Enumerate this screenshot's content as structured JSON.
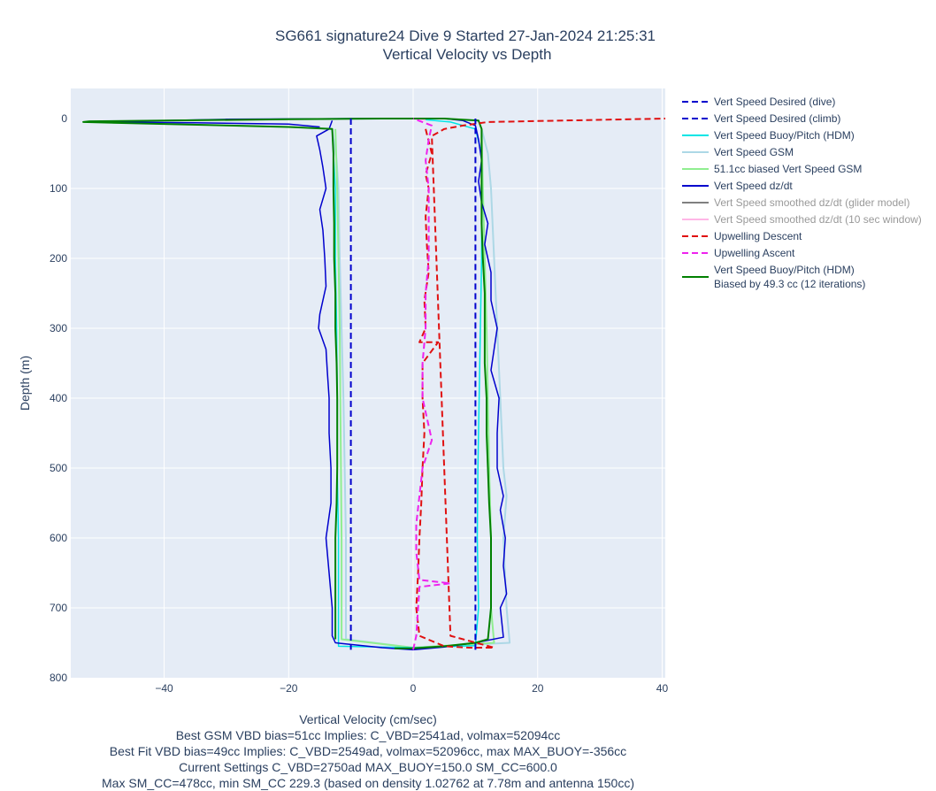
{
  "chart_data": {
    "type": "line",
    "title_line1": "SG661 signature24 Dive 9 Started 27-Jan-2024 21:25:31",
    "title_line2": "Vertical Velocity vs Depth",
    "xlabel": "Vertical Velocity (cm/sec)",
    "ylabel": "Depth (m)",
    "xlim": [
      -55,
      40.5
    ],
    "ylim": [
      800,
      -43
    ],
    "y_reversed": true,
    "x_ticks": [
      -40,
      -20,
      0,
      20,
      40
    ],
    "x_tick_labels": [
      "−40",
      "−20",
      "0",
      "20",
      "40"
    ],
    "y_ticks": [
      0,
      100,
      200,
      300,
      400,
      500,
      600,
      700,
      800
    ],
    "y_tick_labels": [
      "0",
      "100",
      "200",
      "300",
      "400",
      "500",
      "600",
      "700",
      "800"
    ],
    "grid": true,
    "plot_bgcolor": "#e5ecf6",
    "legend_position": "right",
    "captions": [
      "Best GSM VBD bias=51cc Implies: C_VBD=2541ad, volmax=52094cc",
      "Best Fit VBD bias=49cc Implies: C_VBD=2549ad, volmax=52096cc, max MAX_BUOY=-356cc",
      "Current Settings C_VBD=2750ad MAX_BUOY=150.0 SM_CC=600.0",
      "Max SM_CC=478cc, min SM_CC 229.3 (based on density 1.02762 at 7.78m and antenna 150cc)"
    ],
    "series": [
      {
        "name": "Vert Speed Desired (dive)",
        "color": "#0000cd",
        "dash": "dash",
        "width": 2,
        "dim": false,
        "points": [
          [
            -10,
            0
          ],
          [
            -10,
            760
          ]
        ]
      },
      {
        "name": "Vert Speed Desired (climb)",
        "color": "#0000cd",
        "dash": "dash",
        "width": 2,
        "dim": false,
        "points": [
          [
            10,
            760
          ],
          [
            10,
            0
          ]
        ]
      },
      {
        "name": "Vert Speed Buoy/Pitch (HDM)",
        "color": "#00e5e5",
        "dash": "solid",
        "width": 1.5,
        "dim": false,
        "points": [
          [
            -13,
            15
          ],
          [
            -12.8,
            50
          ],
          [
            -12.5,
            100
          ],
          [
            -12.5,
            200
          ],
          [
            -12.3,
            300
          ],
          [
            -12.2,
            400
          ],
          [
            -12.2,
            500
          ],
          [
            -12,
            600
          ],
          [
            -12,
            700
          ],
          [
            -12,
            745
          ],
          [
            -12,
            755
          ],
          [
            0,
            757
          ],
          [
            10,
            754
          ],
          [
            10.5,
            700
          ],
          [
            10.3,
            600
          ],
          [
            10.4,
            500
          ],
          [
            10.6,
            400
          ],
          [
            10.8,
            300
          ],
          [
            11,
            200
          ],
          [
            11,
            100
          ],
          [
            11,
            50
          ],
          [
            10,
            15
          ],
          [
            6,
            5
          ],
          [
            0,
            0
          ]
        ]
      },
      {
        "name": "Vert Speed GSM",
        "color": "#add8e6",
        "dash": "solid",
        "width": 2,
        "dim": false,
        "points": [
          [
            -13,
            15
          ],
          [
            -12.3,
            60
          ],
          [
            -12,
            100
          ],
          [
            -11.8,
            200
          ],
          [
            -11.5,
            300
          ],
          [
            -11.2,
            400
          ],
          [
            -11,
            500
          ],
          [
            -10.8,
            600
          ],
          [
            -10.8,
            700
          ],
          [
            -10.8,
            745
          ],
          [
            0,
            757
          ],
          [
            15.5,
            750
          ],
          [
            15,
            700
          ],
          [
            14.5,
            600
          ],
          [
            15,
            540
          ],
          [
            14.5,
            500
          ],
          [
            14,
            400
          ],
          [
            13.5,
            300
          ],
          [
            13,
            200
          ],
          [
            12.5,
            100
          ],
          [
            12,
            50
          ],
          [
            11,
            15
          ]
        ]
      },
      {
        "name": "51.1cc biased Vert Speed GSM",
        "color": "#90ee90",
        "dash": "solid",
        "width": 2,
        "dim": false,
        "points": [
          [
            -12.5,
            15
          ],
          [
            -12.2,
            100
          ],
          [
            -12,
            200
          ],
          [
            -11.8,
            300
          ],
          [
            -11.7,
            400
          ],
          [
            -11.6,
            500
          ],
          [
            -11.5,
            600
          ],
          [
            -11.5,
            700
          ],
          [
            -11.5,
            745
          ],
          [
            0,
            757
          ],
          [
            13,
            750
          ],
          [
            12.5,
            700
          ],
          [
            12.5,
            600
          ],
          [
            12.2,
            500
          ],
          [
            12,
            400
          ],
          [
            11.8,
            300
          ],
          [
            11.5,
            200
          ],
          [
            11.2,
            100
          ],
          [
            11,
            15
          ]
        ]
      },
      {
        "name": "Vert Speed dz/dt",
        "color": "#0000cd",
        "dash": "solid",
        "width": 1.5,
        "dim": false,
        "points": [
          [
            -13,
            3
          ],
          [
            -13.5,
            15
          ],
          [
            -15.5,
            25
          ],
          [
            -15,
            45
          ],
          [
            -14.5,
            70
          ],
          [
            -14,
            100
          ],
          [
            -15,
            130
          ],
          [
            -14.5,
            160
          ],
          [
            -14.2,
            200
          ],
          [
            -14,
            240
          ],
          [
            -15,
            280
          ],
          [
            -15.2,
            300
          ],
          [
            -14,
            330
          ],
          [
            -13.8,
            360
          ],
          [
            -13.5,
            400
          ],
          [
            -13.5,
            450
          ],
          [
            -13.2,
            500
          ],
          [
            -13.2,
            550
          ],
          [
            -14,
            600
          ],
          [
            -13.5,
            650
          ],
          [
            -13,
            700
          ],
          [
            -13,
            740
          ],
          [
            -12.5,
            750
          ],
          [
            -5,
            757
          ],
          [
            0,
            760
          ],
          [
            5,
            756
          ],
          [
            10,
            750
          ],
          [
            14.5,
            742
          ],
          [
            14,
            700
          ],
          [
            15,
            680
          ],
          [
            14.5,
            640
          ],
          [
            14.8,
            600
          ],
          [
            14,
            560
          ],
          [
            14.5,
            540
          ],
          [
            13.5,
            500
          ],
          [
            13.5,
            450
          ],
          [
            13.8,
            400
          ],
          [
            12.5,
            360
          ],
          [
            13,
            330
          ],
          [
            13.5,
            300
          ],
          [
            12.5,
            260
          ],
          [
            12.5,
            220
          ],
          [
            11.5,
            180
          ],
          [
            12,
            150
          ],
          [
            11,
            120
          ],
          [
            10.5,
            90
          ],
          [
            11,
            60
          ],
          [
            10.5,
            30
          ],
          [
            10,
            10
          ],
          [
            8,
            3
          ],
          [
            5,
            0
          ],
          [
            0,
            0
          ],
          [
            -10,
            0
          ],
          [
            -30,
            1
          ],
          [
            -40,
            3
          ],
          [
            -48,
            4
          ],
          [
            -50,
            5
          ],
          [
            -35,
            6
          ],
          [
            -20,
            8
          ],
          [
            -15,
            12
          ]
        ]
      },
      {
        "name": "Vert Speed smoothed dz/dt (glider model)",
        "color": "#808080",
        "dash": "solid",
        "width": 2,
        "dim": true,
        "points": []
      },
      {
        "name": "Vert Speed smoothed dz/dt (10 sec window)",
        "color": "#ffb6e6",
        "dash": "solid",
        "width": 2,
        "dim": true,
        "points": [
          [
            0,
            0
          ],
          [
            2,
            2
          ]
        ]
      },
      {
        "name": "Upwelling Descent",
        "color": "#e01010",
        "dash": "dash",
        "width": 2,
        "dim": false,
        "points": [
          [
            2,
            15
          ],
          [
            3,
            50
          ],
          [
            2,
            80
          ],
          [
            2.5,
            100
          ],
          [
            2,
            140
          ],
          [
            2.2,
            180
          ],
          [
            2.5,
            220
          ],
          [
            1.8,
            260
          ],
          [
            2,
            300
          ],
          [
            1,
            320
          ],
          [
            4,
            320
          ],
          [
            1.5,
            350
          ],
          [
            1.5,
            400
          ],
          [
            1.8,
            450
          ],
          [
            1.5,
            500
          ],
          [
            1.3,
            550
          ],
          [
            1,
            600
          ],
          [
            0.8,
            650
          ],
          [
            0.5,
            700
          ],
          [
            1,
            740
          ],
          [
            5,
            755
          ],
          [
            9,
            757
          ],
          [
            13,
            757
          ],
          [
            6,
            740
          ],
          [
            3,
            25
          ],
          [
            5,
            15
          ],
          [
            8,
            10
          ],
          [
            12,
            5
          ],
          [
            40.5,
            0
          ]
        ]
      },
      {
        "name": "Upwelling Ascent",
        "color": "#ee22ee",
        "dash": "dash",
        "width": 2,
        "dim": false,
        "points": [
          [
            0,
            760
          ],
          [
            0.5,
            740
          ],
          [
            0.8,
            700
          ],
          [
            1,
            670
          ],
          [
            6,
            665
          ],
          [
            1,
            660
          ],
          [
            0.5,
            620
          ],
          [
            0.5,
            580
          ],
          [
            1,
            540
          ],
          [
            1.5,
            500
          ],
          [
            3,
            460
          ],
          [
            2,
            420
          ],
          [
            1.5,
            400
          ],
          [
            1.5,
            350
          ],
          [
            2,
            300
          ],
          [
            2,
            250
          ],
          [
            2.5,
            200
          ],
          [
            2.5,
            150
          ],
          [
            2.5,
            100
          ],
          [
            2,
            60
          ],
          [
            2.5,
            30
          ],
          [
            3,
            10
          ],
          [
            0,
            0
          ]
        ]
      },
      {
        "name": "Vert Speed Buoy/Pitch (HDM)\nBiased by 49.3 cc (12 iterations)",
        "color": "#008000",
        "dash": "solid",
        "width": 2,
        "dim": false,
        "points": [
          [
            -12.5,
            745
          ],
          [
            -12.5,
            700
          ],
          [
            -12.5,
            650
          ],
          [
            -12.5,
            600
          ],
          [
            -12.3,
            550
          ],
          [
            -12.2,
            500
          ],
          [
            -12.2,
            450
          ],
          [
            -12.2,
            400
          ],
          [
            -12.3,
            350
          ],
          [
            -12.5,
            300
          ],
          [
            -12.5,
            250
          ],
          [
            -12.7,
            200
          ],
          [
            -12.7,
            150
          ],
          [
            -12.8,
            100
          ],
          [
            -12.8,
            50
          ],
          [
            -13,
            15
          ],
          [
            -20,
            12
          ],
          [
            -53,
            5
          ],
          [
            -52,
            4
          ],
          [
            -40,
            3
          ],
          [
            -20,
            1
          ],
          [
            -5,
            0
          ],
          [
            5,
            0
          ],
          [
            10.5,
            3
          ],
          [
            11,
            15
          ],
          [
            11,
            50
          ],
          [
            11,
            100
          ],
          [
            11,
            150
          ],
          [
            11.2,
            200
          ],
          [
            11.5,
            250
          ],
          [
            11.5,
            300
          ],
          [
            11.5,
            350
          ],
          [
            11.8,
            400
          ],
          [
            11.8,
            450
          ],
          [
            12,
            500
          ],
          [
            12.2,
            550
          ],
          [
            12.5,
            600
          ],
          [
            12.5,
            650
          ],
          [
            12.5,
            700
          ],
          [
            12,
            745
          ],
          [
            10,
            750
          ],
          [
            5,
            755
          ],
          [
            0,
            758
          ],
          [
            -3,
            758
          ]
        ]
      }
    ]
  }
}
